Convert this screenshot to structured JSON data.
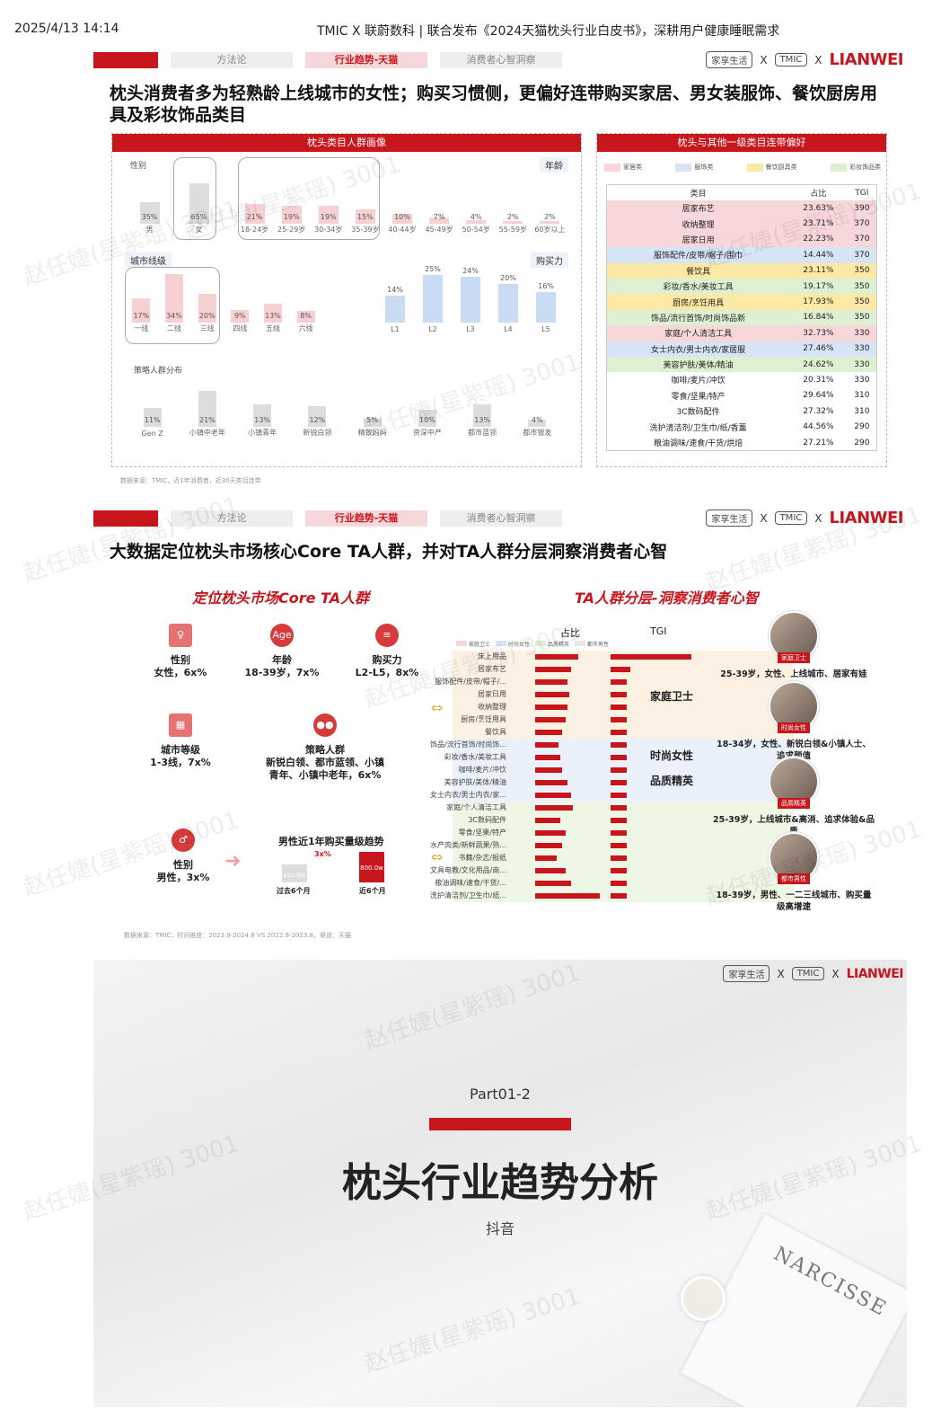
{
  "header": {
    "datetime": "2025/4/13 14:14",
    "title": "TMIC X 联蔚数科 | 联合发布《2024天猫枕头行业白皮书》，深耕用户健康睡眠需求"
  },
  "nav": {
    "tabs": [
      "方法论",
      "行业趋势-天猫",
      "消费者心智洞察"
    ]
  },
  "logos": {
    "brand1": "家享生活",
    "x": "X",
    "brand2": "TMIC",
    "brand2_sub": "天猫新品创新中心",
    "brand3": "LIANWEI"
  },
  "slide1": {
    "heading": "枕头消费者多为轻熟龄上线城市的女性；购买习惯侧，更偏好连带购买家居、男女装服饰、餐饮厨房用具及彩妆饰品类目",
    "left_panel_title": "枕头类目人群画像",
    "right_panel_title": "枕头与其他一级类目连带偏好",
    "gender": {
      "label": "性别",
      "items": [
        {
          "name": "男",
          "pct": "35%",
          "v": 35
        },
        {
          "name": "女",
          "pct": "65%",
          "v": 65
        }
      ]
    },
    "age": {
      "label": "年龄",
      "items": [
        {
          "name": "18-24岁",
          "pct": "21%",
          "v": 21
        },
        {
          "name": "25-29岁",
          "pct": "19%",
          "v": 19
        },
        {
          "name": "30-34岁",
          "pct": "19%",
          "v": 19
        },
        {
          "name": "35-39岁",
          "pct": "15%",
          "v": 15
        },
        {
          "name": "40-44岁",
          "pct": "10%",
          "v": 10
        },
        {
          "name": "45-49岁",
          "pct": "7%",
          "v": 7
        },
        {
          "name": "50-54岁",
          "pct": "4%",
          "v": 4
        },
        {
          "name": "55-59岁",
          "pct": "2%",
          "v": 2
        },
        {
          "name": "60岁以上",
          "pct": "2%",
          "v": 2
        }
      ]
    },
    "city": {
      "label": "城市线级",
      "items": [
        {
          "name": "一线",
          "pct": "17%",
          "v": 17
        },
        {
          "name": "二线",
          "pct": "34%",
          "v": 34
        },
        {
          "name": "三线",
          "pct": "20%",
          "v": 20
        },
        {
          "name": "四线",
          "pct": "9%",
          "v": 9
        },
        {
          "name": "五线",
          "pct": "13%",
          "v": 13
        },
        {
          "name": "六线",
          "pct": "8%",
          "v": 8
        }
      ]
    },
    "purchase": {
      "label": "购买力",
      "items": [
        {
          "name": "L1",
          "pct": "14%",
          "v": 14
        },
        {
          "name": "L2",
          "pct": "25%",
          "v": 25
        },
        {
          "name": "L3",
          "pct": "24%",
          "v": 24
        },
        {
          "name": "L4",
          "pct": "20%",
          "v": 20
        },
        {
          "name": "L5",
          "pct": "16%",
          "v": 16
        }
      ]
    },
    "strategy": {
      "label": "策略人群分布",
      "items": [
        {
          "name": "Gen Z",
          "pct": "11%",
          "v": 11
        },
        {
          "name": "小镇中老年",
          "pct": "21%",
          "v": 21
        },
        {
          "name": "小镇青年",
          "pct": "13%",
          "v": 13
        },
        {
          "name": "新锐白领",
          "pct": "12%",
          "v": 12
        },
        {
          "name": "精致妈妈",
          "pct": "5%",
          "v": 5
        },
        {
          "name": "资深中产",
          "pct": "10%",
          "v": 10
        },
        {
          "name": "都市蓝领",
          "pct": "13%",
          "v": 13
        },
        {
          "name": "都市银发",
          "pct": "4%",
          "v": 4
        }
      ]
    },
    "legend": [
      "家居类",
      "服饰类",
      "餐饮厨具类",
      "彩妆饰品类"
    ],
    "table_headers": [
      "类目",
      "占比",
      "TGI"
    ],
    "table_rows": [
      {
        "cat": "居家布艺",
        "share": "23.63%",
        "tgi": "390",
        "grp": 0
      },
      {
        "cat": "收纳整理",
        "share": "23.71%",
        "tgi": "370",
        "grp": 0
      },
      {
        "cat": "居家日用",
        "share": "22.23%",
        "tgi": "370",
        "grp": 0
      },
      {
        "cat": "服饰配件/皮带/帽子/围巾",
        "share": "14.44%",
        "tgi": "370",
        "grp": 1
      },
      {
        "cat": "餐饮具",
        "share": "23.11%",
        "tgi": "350",
        "grp": 2
      },
      {
        "cat": "彩妆/香水/美妆工具",
        "share": "19.17%",
        "tgi": "350",
        "grp": 3
      },
      {
        "cat": "厨房/烹饪用具",
        "share": "17.93%",
        "tgi": "350",
        "grp": 2
      },
      {
        "cat": "饰品/流行首饰/时尚饰品新",
        "share": "16.84%",
        "tgi": "350",
        "grp": 3
      },
      {
        "cat": "家庭/个人清洁工具",
        "share": "32.73%",
        "tgi": "330",
        "grp": 0
      },
      {
        "cat": "女士内衣/男士内衣/家居服",
        "share": "27.46%",
        "tgi": "330",
        "grp": 1
      },
      {
        "cat": "美容护肤/美体/精油",
        "share": "24.62%",
        "tgi": "330",
        "grp": 3
      },
      {
        "cat": "咖啡/麦片/冲饮",
        "share": "20.31%",
        "tgi": "330",
        "grp": -1
      },
      {
        "cat": "零食/坚果/特产",
        "share": "29.64%",
        "tgi": "310",
        "grp": -1
      },
      {
        "cat": "3C数码配件",
        "share": "27.32%",
        "tgi": "310",
        "grp": -1
      },
      {
        "cat": "洗护清洁剂/卫生巾/纸/香薰",
        "share": "44.56%",
        "tgi": "290",
        "grp": -1
      },
      {
        "cat": "粮油调味/速食/干货/烘焙",
        "share": "27.21%",
        "tgi": "290",
        "grp": -1
      }
    ],
    "source": "数据来源：TMIC，近1年消费者，近30天类目连带"
  },
  "slide2": {
    "heading": "大数据定位枕头市场核心Core TA人群，并对TA人群分层洞察消费者心智",
    "left_title": "定位枕头市场Core TA人群",
    "right_title": "TA人群分层-洞察消费者心智",
    "core": [
      {
        "icon": "person-icon",
        "name": "性别",
        "val": "女性，6x%"
      },
      {
        "icon": "age-icon",
        "name": "年龄",
        "val": "18-39岁，7x%",
        "badge": "Age"
      },
      {
        "icon": "coins-icon",
        "name": "购买力",
        "val": "L2-L5，8x%"
      },
      {
        "icon": "building-icon",
        "name": "城市等级",
        "val": "1-3线，7x%"
      },
      {
        "icon": "crowd-icon",
        "name": "策略人群",
        "val": "新锐白领、都市蓝领、小镇青年、小镇中老年，6x%"
      }
    ],
    "male": {
      "name": "性别",
      "val": "男性，3x%",
      "trend_title": "男性近1年购买量级趋势",
      "growth": "3x%",
      "past_label": "过去6个月",
      "recent_label": "近6个月",
      "past_val": "xxx.0w",
      "recent_val": "800.0w"
    },
    "col_headers": [
      "占比",
      "TGI"
    ],
    "seg_legend": [
      "家庭卫士",
      "时尚女性",
      "品质精英",
      "都市男性"
    ],
    "seg_rows": [
      {
        "cat": "床上用品",
        "share": 48,
        "tgi": 90
      },
      {
        "cat": "居家布艺",
        "share": 40,
        "tgi": 22
      },
      {
        "cat": "服饰配件/皮带/帽子/...",
        "share": 36,
        "tgi": 18
      },
      {
        "cat": "居家日用",
        "share": 38,
        "tgi": 18
      },
      {
        "cat": "收纳整理",
        "share": 36,
        "tgi": 18
      },
      {
        "cat": "厨房/烹饪用具",
        "share": 34,
        "tgi": 18
      },
      {
        "cat": "餐饮具",
        "share": 30,
        "tgi": 18
      },
      {
        "cat": "饰品/流行首饰/时尚饰...",
        "share": 26,
        "tgi": 18
      },
      {
        "cat": "彩妆/香水/美妆工具",
        "share": 28,
        "tgi": 18
      },
      {
        "cat": "咖啡/麦片/冲饮",
        "share": 30,
        "tgi": 18
      },
      {
        "cat": "美容护肤/美体/精油",
        "share": 36,
        "tgi": 18
      },
      {
        "cat": "女士内衣/男士内衣/家...",
        "share": 40,
        "tgi": 18
      },
      {
        "cat": "家庭/个人清洁工具",
        "share": 42,
        "tgi": 18
      },
      {
        "cat": "3C数码配件",
        "share": 28,
        "tgi": 18
      },
      {
        "cat": "零食/坚果/特产",
        "share": 34,
        "tgi": 18
      },
      {
        "cat": "水产肉类/新鲜蔬果/熟...",
        "share": 30,
        "tgi": 18
      },
      {
        "cat": "书籍/杂志/报纸",
        "share": 24,
        "tgi": 18
      },
      {
        "cat": "文具电教/文化用品/商...",
        "share": 34,
        "tgi": 18
      },
      {
        "cat": "粮油调味/速食/干货/...",
        "share": 40,
        "tgi": 18
      },
      {
        "cat": "洗护清洁剂/卫生巾/纸...",
        "share": 72,
        "tgi": 18
      }
    ],
    "groups": [
      "家庭卫士",
      "时尚女性",
      "品质精英"
    ],
    "personas": [
      {
        "tag": "家庭卫士",
        "desc": "25-39岁，女性、上线城市、居家有娃"
      },
      {
        "tag": "时尚女性",
        "desc": "18-34岁，女性、新锐白领&小镇人士、追求颜值"
      },
      {
        "tag": "品质精英",
        "desc": "25-39岁，上线城市&高消、追求体验&品质"
      },
      {
        "tag": "都市男性",
        "desc": "18-39岁，男性、一二三线城市、购买量级高增速"
      }
    ],
    "source": "数据来源：TMIC；时间维度：2023.9-2024.8 VS 2022.9-2023.8，渠道：天猫"
  },
  "slide3": {
    "part": "Part01-2",
    "title": "枕头行业趋势分析",
    "subtitle": "抖音",
    "magazine": "NARCISSE"
  },
  "watermark": "赵任婕(星紫瑶) 3001"
}
